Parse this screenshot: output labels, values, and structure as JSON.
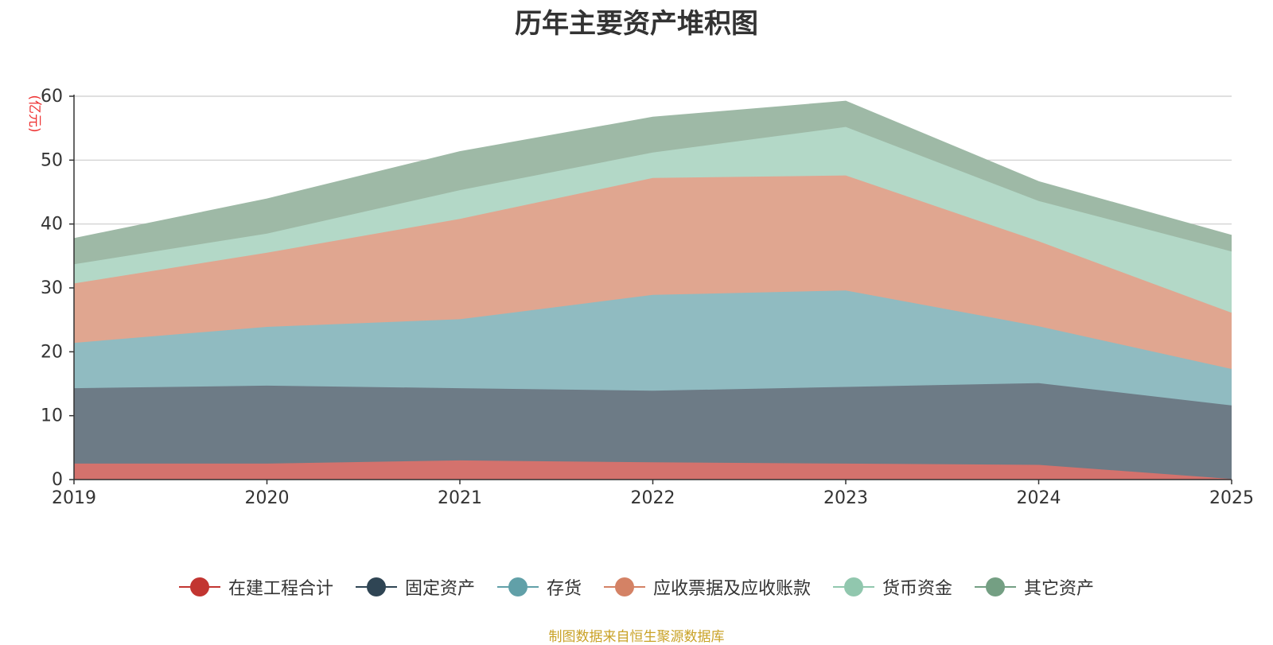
{
  "chart_data": {
    "type": "area",
    "stacked": true,
    "title": "历年主要资产堆积图",
    "ylabel": "(亿元)",
    "xlabel": "",
    "x": [
      "2019",
      "2020",
      "2021",
      "2022",
      "2023",
      "2024",
      "2025"
    ],
    "ylim": [
      0,
      60
    ],
    "yticks": [
      0,
      10,
      20,
      30,
      40,
      50,
      60
    ],
    "grid": true,
    "legend_position": "bottom",
    "series": [
      {
        "name": "在建工程合计",
        "color": "#c23531",
        "fill": "#d4726d",
        "values": [
          2.5,
          2.5,
          3.0,
          2.7,
          2.5,
          2.3,
          0.1
        ]
      },
      {
        "name": "固定资产",
        "color": "#2f4554",
        "fill": "#6d7b86",
        "values": [
          11.8,
          12.2,
          11.3,
          11.2,
          12.0,
          12.8,
          11.5
        ]
      },
      {
        "name": "存货",
        "color": "#61a0a8",
        "fill": "#90bbc1",
        "values": [
          7.1,
          9.2,
          10.8,
          15.0,
          15.1,
          8.9,
          5.7
        ]
      },
      {
        "name": "应收票据及应收账款",
        "color": "#d48265",
        "fill": "#e0a690",
        "values": [
          9.3,
          11.6,
          15.7,
          18.3,
          18.0,
          13.3,
          8.8
        ]
      },
      {
        "name": "货币资金",
        "color": "#91c7ae",
        "fill": "#b3d8c7",
        "values": [
          3.0,
          3.0,
          4.5,
          4.0,
          7.6,
          6.3,
          9.6
        ]
      },
      {
        "name": "其它资产",
        "color": "#749f83",
        "fill": "#9eb9a6",
        "values": [
          4.0,
          5.4,
          6.0,
          5.5,
          4.0,
          3.0,
          2.5
        ]
      }
    ]
  },
  "source_note": "制图数据来自恒生聚源数据库"
}
